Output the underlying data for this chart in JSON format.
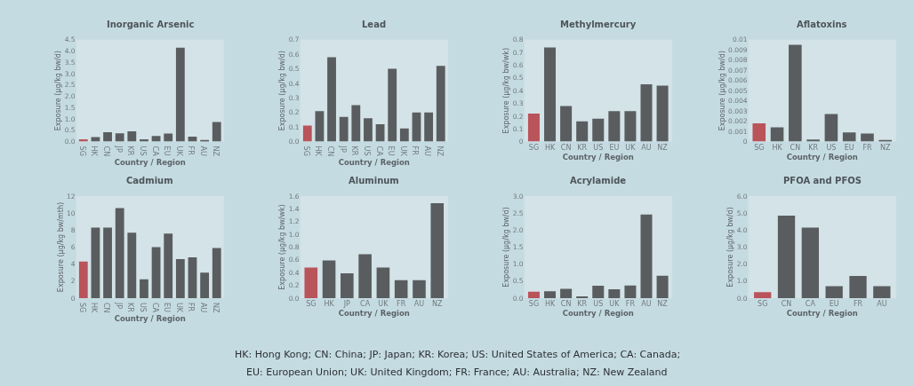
{
  "chart_data": [
    {
      "type": "bar",
      "title": "Inorganic Arsenic",
      "xlabel": "Country / Region",
      "ylabel": "Exposure (μg/kg bw/d)",
      "categories": [
        "SG",
        "HK",
        "CN",
        "JP",
        "KR",
        "US",
        "CA",
        "EU",
        "UK",
        "FR",
        "AU",
        "NZ"
      ],
      "values": [
        0.1,
        0.2,
        0.42,
        0.37,
        0.45,
        0.1,
        0.25,
        0.36,
        4.15,
        0.22,
        0.05,
        0.87
      ],
      "colors": [
        "#b9545a",
        "#5a5d5f",
        "#5a5d5f",
        "#5a5d5f",
        "#5a5d5f",
        "#5a5d5f",
        "#5a5d5f",
        "#5a5d5f",
        "#5a5d5f",
        "#5a5d5f",
        "#5a5d5f",
        "#5a5d5f"
      ],
      "ylim": [
        0,
        4.5
      ],
      "yticks": [
        {
          "value": 0,
          "label": "0.0"
        },
        {
          "value": 0.5,
          "label": "0.5"
        },
        {
          "value": 1,
          "label": "1.0"
        },
        {
          "value": 1.5,
          "label": "1.5"
        },
        {
          "value": 2,
          "label": "2.0"
        },
        {
          "value": 2.5,
          "label": "2.5"
        },
        {
          "value": 3,
          "label": "3.0"
        },
        {
          "value": 3.5,
          "label": "3.5"
        },
        {
          "value": 4,
          "label": "4.0"
        },
        {
          "value": 4.5,
          "label": "4.5"
        }
      ]
    },
    {
      "type": "bar",
      "title": "Lead",
      "xlabel": "Country / Region",
      "ylabel": "Exposure (μg/kg bw/d)",
      "categories": [
        "SG",
        "HK",
        "CN",
        "JP",
        "KR",
        "US",
        "CA",
        "EU",
        "UK",
        "FR",
        "AU",
        "NZ"
      ],
      "values": [
        0.11,
        0.21,
        0.58,
        0.17,
        0.25,
        0.16,
        0.12,
        0.5,
        0.09,
        0.2,
        0.2,
        0.52
      ],
      "colors": [
        "#b9545a",
        "#5a5d5f",
        "#5a5d5f",
        "#5a5d5f",
        "#5a5d5f",
        "#5a5d5f",
        "#5a5d5f",
        "#5a5d5f",
        "#5a5d5f",
        "#5a5d5f",
        "#5a5d5f",
        "#5a5d5f"
      ],
      "ylim": [
        0,
        0.7
      ],
      "yticks": [
        {
          "value": 0,
          "label": "0.0"
        },
        0.1,
        0.2,
        0.3,
        0.4,
        0.5,
        0.6,
        0.7
      ]
    },
    {
      "type": "bar",
      "title": "Methylmercury",
      "xlabel": "Country / Region",
      "ylabel": "Exposure (μg/kg bw/wk)",
      "categories": [
        "SG",
        "HK",
        "CN",
        "KR",
        "US",
        "EU",
        "UK",
        "AU",
        "NZ"
      ],
      "values": [
        0.22,
        0.74,
        0.28,
        0.16,
        0.18,
        0.24,
        0.24,
        0.45,
        0.44
      ],
      "colors": [
        "#b9545a",
        "#5a5d5f",
        "#5a5d5f",
        "#5a5d5f",
        "#5a5d5f",
        "#5a5d5f",
        "#5a5d5f",
        "#5a5d5f",
        "#5a5d5f"
      ],
      "ylim": [
        0,
        0.8
      ],
      "yticks": [
        0,
        0.1,
        0.2,
        0.3,
        0.4,
        0.5,
        0.6,
        0.7,
        0.8
      ]
    },
    {
      "type": "bar",
      "title": "Aflatoxins",
      "xlabel": "Country / Region",
      "ylabel": "Exposure (μg/kg bw/d)",
      "categories": [
        "SG",
        "HK",
        "CN",
        "KR",
        "US",
        "EU",
        "FR",
        "NZ"
      ],
      "values": [
        0.0018,
        0.0014,
        0.0095,
        0.0002,
        0.0027,
        0.0009,
        0.0008,
        0.0001
      ],
      "colors": [
        "#b9545a",
        "#5a5d5f",
        "#5a5d5f",
        "#5a5d5f",
        "#5a5d5f",
        "#5a5d5f",
        "#5a5d5f",
        "#5a5d5f"
      ],
      "ylim": [
        0,
        0.01
      ],
      "yticks": [
        0,
        0.001,
        0.002,
        0.003,
        0.004,
        0.005,
        0.006,
        0.007,
        0.008,
        0.009,
        0.01
      ]
    },
    {
      "type": "bar",
      "title": "Cadmium",
      "xlabel": "Country / Region",
      "ylabel": "Exposure (μg/kg bw/mth)",
      "categories": [
        "SG",
        "HK",
        "CN",
        "JP",
        "KR",
        "US",
        "CA",
        "EU",
        "UK",
        "FR",
        "AU",
        "NZ"
      ],
      "values": [
        4.3,
        8.3,
        8.3,
        10.6,
        7.7,
        2.2,
        6.0,
        7.6,
        4.6,
        4.8,
        3.0,
        5.9
      ],
      "colors": [
        "#b9545a",
        "#5a5d5f",
        "#5a5d5f",
        "#5a5d5f",
        "#5a5d5f",
        "#5a5d5f",
        "#5a5d5f",
        "#5a5d5f",
        "#5a5d5f",
        "#5a5d5f",
        "#5a5d5f",
        "#5a5d5f"
      ],
      "ylim": [
        0,
        12
      ],
      "yticks": [
        0,
        2,
        4,
        6,
        8,
        10,
        12
      ]
    },
    {
      "type": "bar",
      "title": "Aluminum",
      "xlabel": "Country / Region",
      "ylabel": "Exposure (μg/kg bw/wk)",
      "categories": [
        "SG",
        "HK",
        "JP",
        "CA",
        "UK",
        "FR",
        "AU",
        "NZ"
      ],
      "values": [
        0.48,
        0.59,
        0.39,
        0.69,
        0.48,
        0.28,
        0.28,
        1.49
      ],
      "colors": [
        "#b9545a",
        "#5a5d5f",
        "#5a5d5f",
        "#5a5d5f",
        "#5a5d5f",
        "#5a5d5f",
        "#5a5d5f",
        "#5a5d5f"
      ],
      "ylim": [
        0,
        1.6
      ],
      "yticks": [
        {
          "value": 0,
          "label": "0.0"
        },
        0.2,
        0.4,
        0.6,
        0.8,
        {
          "value": 1,
          "label": "1.0"
        },
        1.2,
        1.4,
        1.6
      ]
    },
    {
      "type": "bar",
      "title": "Acrylamide",
      "xlabel": "Country / Region",
      "ylabel": "Exposure (μg/kg bw/d)",
      "categories": [
        "SG",
        "HK",
        "CN",
        "KR",
        "US",
        "UK",
        "FR",
        "AU",
        "NZ"
      ],
      "values": [
        0.19,
        0.2,
        0.27,
        0.04,
        0.36,
        0.26,
        0.37,
        2.46,
        0.66
      ],
      "colors": [
        "#b9545a",
        "#5a5d5f",
        "#5a5d5f",
        "#5a5d5f",
        "#5a5d5f",
        "#5a5d5f",
        "#5a5d5f",
        "#5a5d5f",
        "#5a5d5f"
      ],
      "ylim": [
        0,
        3
      ],
      "yticks": [
        {
          "value": 0,
          "label": "0.0"
        },
        0.5,
        {
          "value": 1,
          "label": "1.0"
        },
        1.5,
        {
          "value": 2,
          "label": "2.0"
        },
        2.5,
        {
          "value": 3,
          "label": "3.0"
        }
      ]
    },
    {
      "type": "bar",
      "title": "PFOA and PFOS",
      "xlabel": "Country / Region",
      "ylabel": "Exposure (μg/kg bw/d)",
      "categories": [
        "SG",
        "CN",
        "CA",
        "EU",
        "FR",
        "AU"
      ],
      "values": [
        0.35,
        4.85,
        4.15,
        0.7,
        1.3,
        0.7
      ],
      "colors": [
        "#b9545a",
        "#5a5d5f",
        "#5a5d5f",
        "#5a5d5f",
        "#5a5d5f",
        "#5a5d5f"
      ],
      "ylim": [
        0,
        6
      ],
      "yticks": [
        {
          "value": 0,
          "label": "0.0"
        },
        {
          "value": 1,
          "label": "1.0"
        },
        {
          "value": 2,
          "label": "2.0"
        },
        {
          "value": 3,
          "label": "3.0"
        },
        {
          "value": 4,
          "label": "4.0"
        },
        {
          "value": 5,
          "label": "5.0"
        },
        {
          "value": 6,
          "label": "6.0"
        }
      ],
      "annotations": [
        "HK: Hong Kong; CN: China; JP: Japan; KR: Korea; US: United States of America; CA: Canada;",
        "EU: European Union; UK: United Kingdom; FR: France; AU: Australia; NZ: New Zealand"
      ]
    }
  ]
}
